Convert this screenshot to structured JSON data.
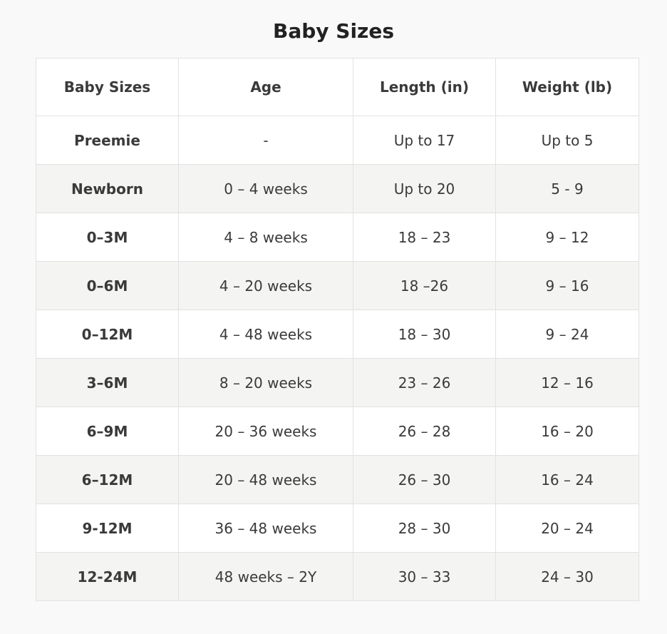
{
  "header": {
    "title": "Baby Sizes"
  },
  "table": {
    "columns": [
      "Baby Sizes",
      "Age",
      "Length (in)",
      "Weight (lb)"
    ],
    "rows": [
      [
        "Preemie",
        "-",
        "Up to 17",
        "Up to 5"
      ],
      [
        "Newborn",
        "0 – 4 weeks",
        "Up to 20",
        "5 - 9"
      ],
      [
        "0–3M",
        "4 – 8 weeks",
        "18 – 23",
        "9 – 12"
      ],
      [
        "0–6M",
        "4 – 20 weeks",
        "18 –26",
        "9 – 16"
      ],
      [
        "0–12M",
        "4 – 48 weeks",
        "18 – 30",
        "9 – 24"
      ],
      [
        "3–6M",
        "8 – 20 weeks",
        "23 – 26",
        "12 – 16"
      ],
      [
        "6–9M",
        "20 – 36 weeks",
        "26 – 28",
        "16 – 20"
      ],
      [
        "6–12M",
        "20 – 48 weeks",
        "26 – 30",
        "16 – 24"
      ],
      [
        "9-12M",
        "36 – 48 weeks",
        "28 – 30",
        "20 – 24"
      ],
      [
        "12-24M",
        "48 weeks – 2Y",
        "30 – 33",
        "24 – 30"
      ]
    ]
  }
}
